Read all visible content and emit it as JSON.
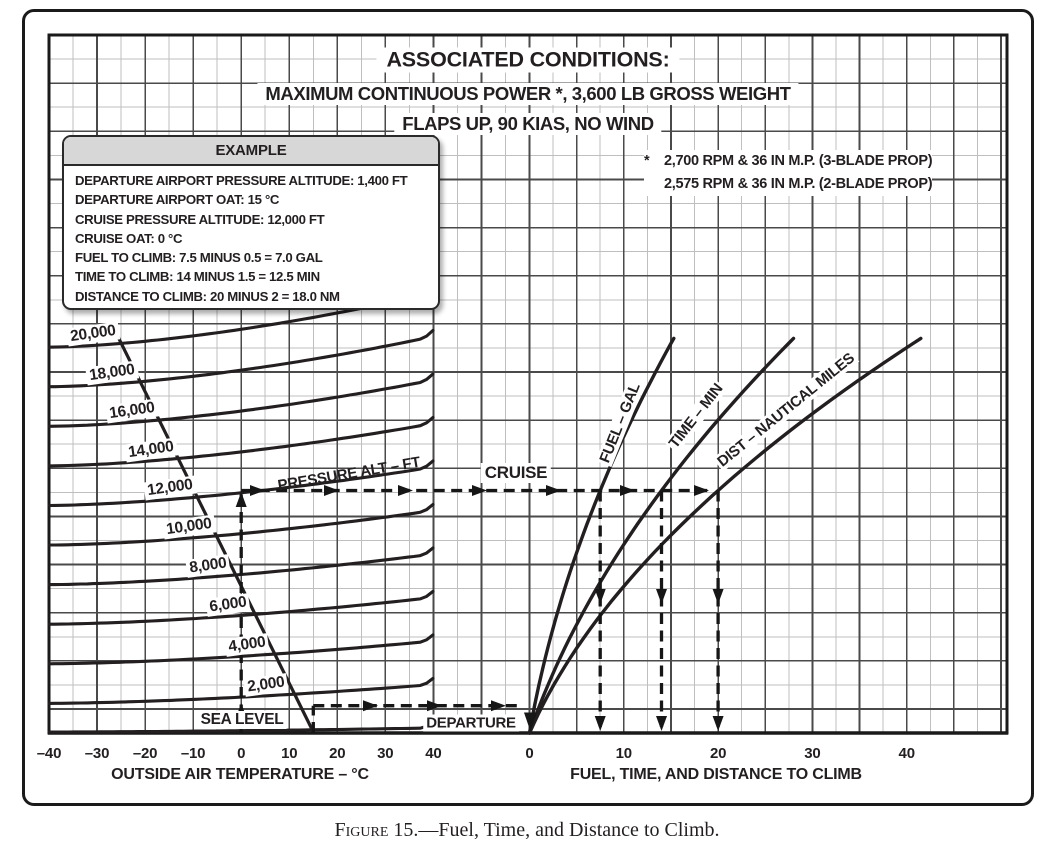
{
  "title": {
    "line1": "ASSOCIATED CONDITIONS:",
    "line2": "MAXIMUM CONTINUOUS POWER *, 3,600 LB GROSS WEIGHT",
    "line3": "FLAPS UP, 90 KIAS, NO WIND"
  },
  "note": {
    "star": "*",
    "line1": "2,700 RPM & 36 IN M.P. (3-BLADE PROP)",
    "line2": "2,575 RPM & 36 IN M.P. (2-BLADE PROP)"
  },
  "example": {
    "header": "EXAMPLE",
    "lines": [
      "DEPARTURE AIRPORT PRESSURE ALTITUDE: 1,400 FT",
      "DEPARTURE AIRPORT OAT: 15 °C",
      "CRUISE PRESSURE ALTITUDE: 12,000 FT",
      "CRUISE OAT: 0 °C",
      "FUEL TO CLIMB: 7.5 MINUS 0.5 = 7.0 GAL",
      "TIME TO CLIMB: 14 MINUS 1.5 = 12.5 MIN",
      "DISTANCE TO CLIMB: 20 MINUS 2 = 18.0 NM"
    ]
  },
  "figure": {
    "caption_word": "Figure",
    "caption_rest": " 15.—Fuel, Time, and Distance to Climb."
  },
  "chart_data": {
    "type": "line",
    "grid": true,
    "colors": {
      "ink": "#231f20",
      "grid_major": "#4a4a4a",
      "grid_minor": "#bfbfbf",
      "example_header_bg": "#d7d7d7"
    },
    "left_chart": {
      "xlabel": "OUTSIDE AIR TEMPERATURE – °C",
      "x_range": [
        -40,
        40
      ],
      "x_ticks": [
        {
          "v": -40,
          "label": "–40"
        },
        {
          "v": -30,
          "label": "–30"
        },
        {
          "v": -20,
          "label": "–20"
        },
        {
          "v": -10,
          "label": "–10"
        },
        {
          "v": 0,
          "label": "0"
        },
        {
          "v": 10,
          "label": "10"
        },
        {
          "v": 20,
          "label": "20"
        },
        {
          "v": 30,
          "label": "30"
        },
        {
          "v": 40,
          "label": "40"
        }
      ],
      "family_label": "PRESSURE ALT – FT",
      "altitude_curves": [
        {
          "alt": 0,
          "label": "SEA LEVEL"
        },
        {
          "alt": 2000,
          "label": "2,000"
        },
        {
          "alt": 4000,
          "label": "4,000"
        },
        {
          "alt": 6000,
          "label": "6,000"
        },
        {
          "alt": 8000,
          "label": "8,000"
        },
        {
          "alt": 10000,
          "label": "10,000"
        },
        {
          "alt": 12000,
          "label": "12,000"
        },
        {
          "alt": 14000,
          "label": "14,000"
        },
        {
          "alt": 16000,
          "label": "16,000"
        },
        {
          "alt": 18000,
          "label": "18,000"
        },
        {
          "alt": 20000,
          "label": "20,000"
        }
      ],
      "isa_line": {
        "sea_level_oat_c": 15,
        "lapse_c_per_1000ft": 2
      }
    },
    "right_chart": {
      "xlabel": "FUEL, TIME, AND DISTANCE TO CLIMB",
      "x_range": [
        0,
        50
      ],
      "x_ticks": [
        {
          "v": 0,
          "label": "0"
        },
        {
          "v": 10,
          "label": "10"
        },
        {
          "v": 20,
          "label": "20"
        },
        {
          "v": 30,
          "label": "30"
        },
        {
          "v": 40,
          "label": "40"
        }
      ],
      "curves": [
        {
          "name": "fuel",
          "label": "FUEL – GAL",
          "points": [
            {
              "v": 0,
              "alt": 0
            },
            {
              "v": 7.5,
              "alt": 12000
            },
            {
              "v": 15.3,
              "alt": 19800
            }
          ]
        },
        {
          "name": "time",
          "label": "TIME – MIN",
          "points": [
            {
              "v": 0,
              "alt": 0
            },
            {
              "v": 14,
              "alt": 12000
            },
            {
              "v": 28,
              "alt": 19800
            }
          ]
        },
        {
          "name": "dist",
          "label": "DIST – NAUTICAL MILES",
          "points": [
            {
              "v": 0,
              "alt": 0
            },
            {
              "v": 20,
              "alt": 12000
            },
            {
              "v": 41.5,
              "alt": 19800
            }
          ]
        }
      ]
    },
    "example_path": {
      "departure": {
        "label": "DEPARTURE",
        "oat_c": 15,
        "pressure_alt_ft": 1400
      },
      "cruise": {
        "label": "CRUISE",
        "oat_c": 0,
        "pressure_alt_ft": 12000
      },
      "readings": {
        "fuel_gal": 7.5,
        "time_min": 14,
        "dist_nm": 20
      },
      "departure_readings": {
        "fuel_gal": 0.5,
        "time_min": 1.5,
        "dist_nm": 2
      }
    }
  }
}
